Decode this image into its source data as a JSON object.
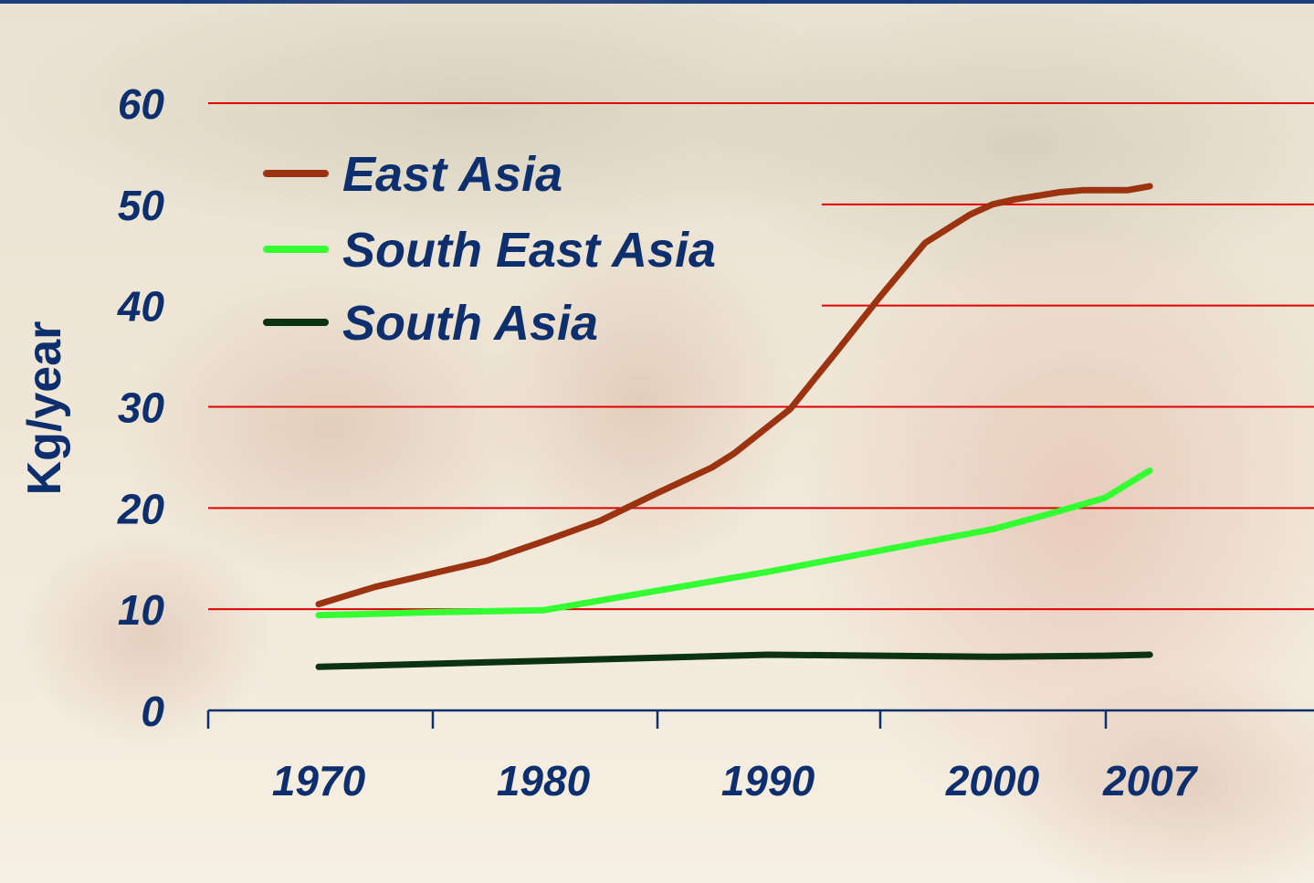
{
  "chart_data": {
    "type": "line",
    "title": "",
    "ylabel": "Kg/year",
    "xlabel": "",
    "ylim": [
      0,
      60
    ],
    "yticks": [
      0,
      10,
      20,
      30,
      40,
      50,
      60
    ],
    "xlim": [
      1970,
      2010
    ],
    "xtick_labels": [
      {
        "year": 1970,
        "label": "1970"
      },
      {
        "year": 1980,
        "label": "1980"
      },
      {
        "year": 1990,
        "label": "1990"
      },
      {
        "year": 2000,
        "label": "2000"
      },
      {
        "year": 2007,
        "label": "2007"
      }
    ],
    "grid": "horizontal",
    "grid_color": "#e00000",
    "axis_color": "#0d2f6e",
    "text_color": "#0d2f6e",
    "legend_position": "top-left",
    "series": [
      {
        "name": "East Asia",
        "color": "#9b3210",
        "points": [
          [
            1970,
            10.5
          ],
          [
            1972.5,
            12.2
          ],
          [
            1975,
            13.5
          ],
          [
            1977.5,
            14.8
          ],
          [
            1980,
            16.7
          ],
          [
            1982.5,
            18.7
          ],
          [
            1985,
            21.4
          ],
          [
            1987.5,
            24.0
          ],
          [
            1988.5,
            25.4
          ],
          [
            1991,
            29.8
          ],
          [
            1993,
            35.3
          ],
          [
            1995,
            40.9
          ],
          [
            1997,
            46.2
          ],
          [
            1999,
            49.0
          ],
          [
            2000,
            50.0
          ],
          [
            2001,
            50.5
          ],
          [
            2003,
            51.2
          ],
          [
            2004,
            51.4
          ],
          [
            2006,
            51.4
          ],
          [
            2007,
            51.8
          ]
        ]
      },
      {
        "name": "South East Asia",
        "color": "#33ff33",
        "points": [
          [
            1970,
            9.4
          ],
          [
            1975,
            9.7
          ],
          [
            1980,
            9.9
          ],
          [
            1985,
            11.8
          ],
          [
            1990,
            13.7
          ],
          [
            1995,
            15.8
          ],
          [
            2000,
            17.9
          ],
          [
            2002.5,
            19.4
          ],
          [
            2005,
            21.0
          ],
          [
            2007,
            23.7
          ]
        ]
      },
      {
        "name": "South Asia",
        "color": "#0b3312",
        "points": [
          [
            1970,
            4.3
          ],
          [
            1975,
            4.6
          ],
          [
            1980,
            4.9
          ],
          [
            1985,
            5.2
          ],
          [
            1990,
            5.5
          ],
          [
            1995,
            5.4
          ],
          [
            2000,
            5.3
          ],
          [
            2005,
            5.4
          ],
          [
            2007,
            5.5
          ]
        ]
      }
    ]
  }
}
